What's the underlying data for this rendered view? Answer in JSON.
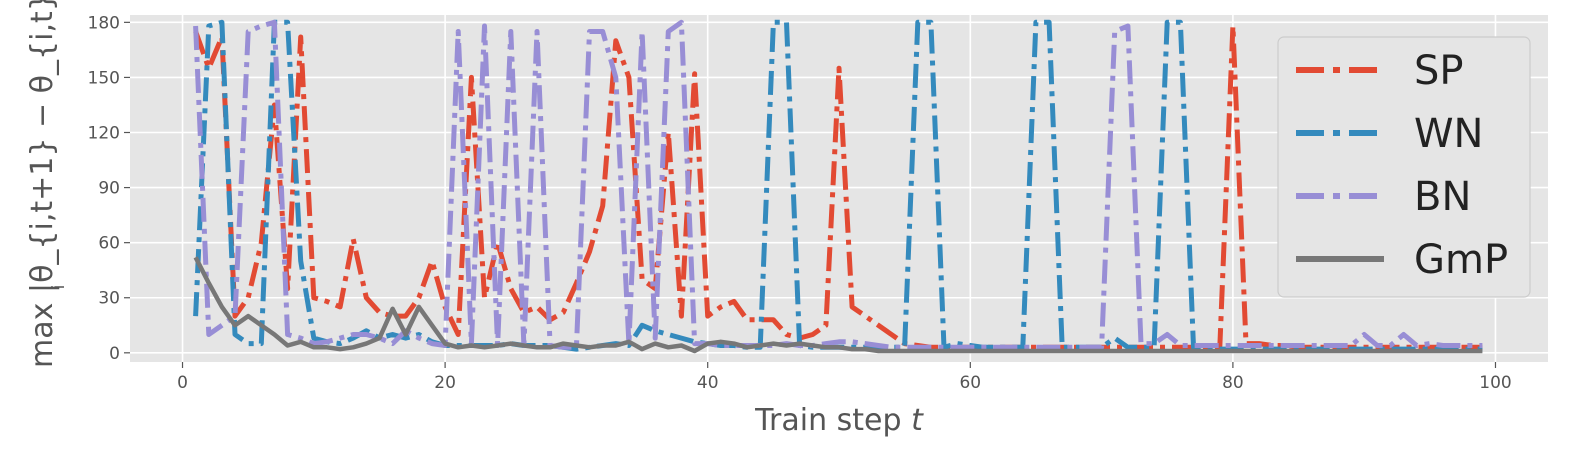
{
  "chart_data": {
    "type": "line",
    "xlabel": "Train step",
    "xlabel_var": "t",
    "ylabel": "max |θ_{i,t+1} − θ_{i,t}|",
    "ylabel_sub": "i",
    "xlim": [
      -4,
      104
    ],
    "ylim": [
      -5,
      184
    ],
    "xticks": [
      0,
      20,
      40,
      60,
      80,
      100
    ],
    "yticks": [
      0,
      30,
      60,
      90,
      120,
      150,
      180
    ],
    "grid": true,
    "legend_position": "top-right",
    "series": [
      {
        "name": "SP",
        "color": "#E24A33",
        "style": "dashdot",
        "x": [
          1,
          2,
          3,
          4,
          5,
          6,
          7,
          8,
          9,
          10,
          11,
          12,
          13,
          14,
          15,
          16,
          17,
          18,
          19,
          20,
          21,
          22,
          23,
          24,
          25,
          26,
          27,
          28,
          29,
          30,
          31,
          32,
          33,
          34,
          35,
          36,
          37,
          38,
          39,
          40,
          41,
          42,
          43,
          44,
          45,
          46,
          47,
          48,
          49,
          50,
          51,
          52,
          53,
          54,
          55,
          56,
          57,
          58,
          59,
          60,
          61,
          62,
          63,
          64,
          65,
          66,
          67,
          68,
          69,
          70,
          71,
          72,
          73,
          74,
          75,
          76,
          77,
          78,
          79,
          80,
          81,
          82,
          83,
          84,
          85,
          86,
          87,
          88,
          89,
          90,
          91,
          92,
          93,
          94,
          95,
          96,
          97,
          98,
          99
        ],
        "y": [
          175,
          155,
          172,
          20,
          30,
          60,
          135,
          35,
          172,
          30,
          28,
          25,
          62,
          30,
          22,
          20,
          20,
          30,
          50,
          25,
          10,
          150,
          30,
          60,
          35,
          22,
          25,
          18,
          22,
          38,
          55,
          80,
          170,
          150,
          40,
          35,
          120,
          20,
          152,
          20,
          25,
          28,
          18,
          18,
          18,
          10,
          8,
          10,
          15,
          155,
          25,
          20,
          15,
          10,
          5,
          4,
          3,
          3,
          3,
          3,
          3,
          3,
          3,
          3,
          3,
          3,
          3,
          3,
          3,
          3,
          3,
          3,
          3,
          3,
          3,
          3,
          3,
          3,
          3,
          178,
          5,
          5,
          4,
          4,
          3,
          3,
          3,
          3,
          3,
          3,
          3,
          3,
          3,
          3,
          3,
          3,
          3,
          3,
          3
        ]
      },
      {
        "name": "WN",
        "color": "#348ABD",
        "style": "dashdot",
        "x": [
          1,
          2,
          3,
          4,
          5,
          6,
          7,
          8,
          9,
          10,
          11,
          12,
          13,
          14,
          15,
          16,
          17,
          18,
          19,
          20,
          21,
          22,
          23,
          24,
          25,
          26,
          27,
          28,
          29,
          30,
          31,
          32,
          33,
          34,
          35,
          36,
          37,
          38,
          39,
          40,
          41,
          42,
          43,
          44,
          45,
          46,
          47,
          48,
          49,
          50,
          51,
          52,
          53,
          54,
          55,
          56,
          57,
          58,
          59,
          60,
          61,
          62,
          63,
          64,
          65,
          66,
          67,
          68,
          69,
          70,
          71,
          72,
          73,
          74,
          75,
          76,
          77,
          78,
          79,
          80,
          81,
          82,
          83,
          84,
          85,
          86,
          87,
          88,
          89,
          90,
          91,
          92,
          93,
          94,
          95,
          96,
          97,
          98,
          99
        ],
        "y": [
          20,
          178,
          180,
          10,
          5,
          5,
          180,
          180,
          50,
          8,
          6,
          5,
          8,
          12,
          8,
          10,
          8,
          10,
          6,
          4,
          4,
          4,
          4,
          4,
          5,
          4,
          4,
          4,
          3,
          2,
          3,
          4,
          5,
          4,
          15,
          12,
          10,
          8,
          6,
          5,
          4,
          4,
          3,
          3,
          180,
          180,
          4,
          3,
          3,
          3,
          3,
          3,
          3,
          3,
          3,
          180,
          180,
          3,
          5,
          4,
          3,
          3,
          3,
          3,
          180,
          180,
          3,
          3,
          3,
          3,
          8,
          3,
          3,
          3,
          180,
          180,
          3,
          2,
          2,
          2,
          2,
          2,
          2,
          2,
          2,
          2,
          2,
          2,
          2,
          2,
          2,
          2,
          2,
          2,
          2,
          2,
          2,
          2,
          2
        ]
      },
      {
        "name": "BN",
        "color": "#988ED5",
        "style": "dashdot",
        "x": [
          1,
          2,
          3,
          4,
          5,
          6,
          7,
          8,
          9,
          10,
          11,
          12,
          13,
          14,
          15,
          16,
          17,
          18,
          19,
          20,
          21,
          22,
          23,
          24,
          25,
          26,
          27,
          28,
          29,
          30,
          31,
          32,
          33,
          34,
          35,
          36,
          37,
          38,
          39,
          40,
          41,
          42,
          43,
          44,
          45,
          46,
          47,
          48,
          49,
          50,
          51,
          52,
          53,
          54,
          55,
          56,
          57,
          58,
          59,
          60,
          61,
          62,
          63,
          64,
          65,
          66,
          67,
          68,
          69,
          70,
          71,
          72,
          73,
          74,
          75,
          76,
          77,
          78,
          79,
          80,
          81,
          82,
          83,
          84,
          85,
          86,
          87,
          88,
          89,
          90,
          91,
          92,
          93,
          94,
          95,
          96,
          97,
          98,
          99
        ],
        "y": [
          178,
          10,
          15,
          20,
          175,
          178,
          180,
          10,
          8,
          5,
          6,
          8,
          10,
          10,
          8,
          5,
          12,
          8,
          5,
          4,
          175,
          5,
          178,
          4,
          175,
          4,
          175,
          4,
          3,
          3,
          175,
          175,
          150,
          5,
          175,
          8,
          175,
          180,
          5,
          5,
          4,
          4,
          4,
          4,
          4,
          5,
          4,
          4,
          5,
          6,
          6,
          5,
          4,
          3,
          3,
          3,
          3,
          3,
          3,
          3,
          3,
          3,
          3,
          3,
          3,
          3,
          3,
          3,
          3,
          3,
          175,
          178,
          5,
          5,
          10,
          4,
          4,
          4,
          4,
          4,
          4,
          4,
          4,
          4,
          4,
          4,
          4,
          4,
          4,
          10,
          4,
          4,
          10,
          4,
          5,
          4,
          4,
          4,
          4
        ]
      },
      {
        "name": "GmP",
        "color": "#777777",
        "style": "solid",
        "x": [
          1,
          2,
          3,
          4,
          5,
          6,
          7,
          8,
          9,
          10,
          11,
          12,
          13,
          14,
          15,
          16,
          17,
          18,
          19,
          20,
          21,
          22,
          23,
          24,
          25,
          26,
          27,
          28,
          29,
          30,
          31,
          32,
          33,
          34,
          35,
          36,
          37,
          38,
          39,
          40,
          41,
          42,
          43,
          44,
          45,
          46,
          47,
          48,
          49,
          50,
          51,
          52,
          53,
          54,
          55,
          56,
          57,
          58,
          59,
          60,
          61,
          62,
          63,
          64,
          65,
          66,
          67,
          68,
          69,
          70,
          71,
          72,
          73,
          74,
          75,
          76,
          77,
          78,
          79,
          80,
          81,
          82,
          83,
          84,
          85,
          86,
          87,
          88,
          89,
          90,
          91,
          92,
          93,
          94,
          95,
          96,
          97,
          98,
          99
        ],
        "y": [
          52,
          38,
          25,
          15,
          20,
          15,
          10,
          4,
          6,
          3,
          3,
          2,
          3,
          5,
          8,
          24,
          10,
          25,
          15,
          5,
          3,
          4,
          3,
          4,
          5,
          4,
          3,
          3,
          5,
          4,
          3,
          4,
          4,
          6,
          2,
          5,
          3,
          4,
          1,
          5,
          6,
          5,
          3,
          4,
          5,
          4,
          5,
          4,
          3,
          3,
          2,
          2,
          1,
          1,
          1,
          1,
          1,
          1,
          1,
          1,
          1,
          1,
          1,
          1,
          1,
          1,
          1,
          1,
          1,
          1,
          1,
          1,
          1,
          1,
          1,
          1,
          1,
          1,
          1,
          1,
          1,
          1,
          1,
          1,
          1,
          1,
          1,
          1,
          1,
          1,
          1,
          1,
          1,
          1,
          1,
          1,
          1,
          1,
          1
        ]
      }
    ]
  }
}
